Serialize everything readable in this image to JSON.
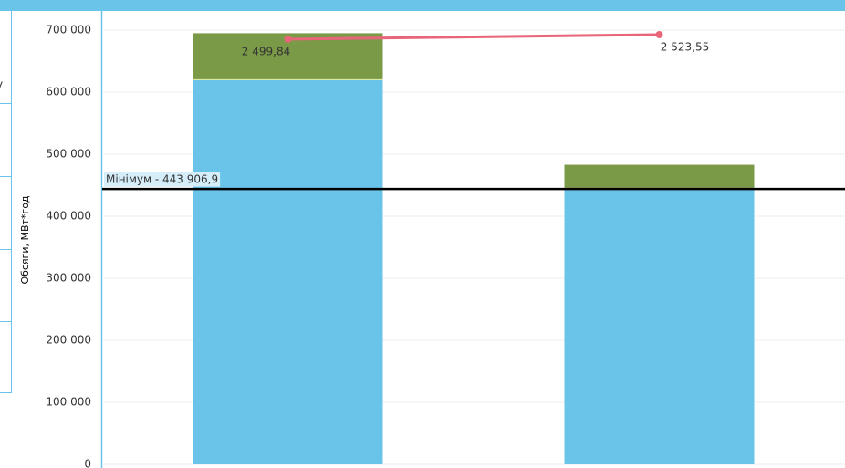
{
  "panel": {
    "text": "у"
  },
  "chart_data": {
    "type": "bar",
    "stacked": true,
    "ylabel": "Обсяги, МВт*год",
    "categories": [
      null,
      null
    ],
    "series": [
      {
        "color": "#6ac4ea",
        "values": [
          620000,
          445000
        ]
      },
      {
        "color": "#7a9a47",
        "values": [
          75000,
          38000
        ]
      },
      {
        "type": "line",
        "axis": "y2",
        "color": "#e8657a",
        "values": [
          2499.84,
          2523.55
        ],
        "value_labels": [
          "2 499,84",
          "2 523,55"
        ]
      }
    ],
    "ylim": [
      0,
      700000
    ],
    "yticks": [
      {
        "value": 0,
        "label": "0"
      },
      {
        "value": 100000,
        "label": "100 000"
      },
      {
        "value": 200000,
        "label": "200 000"
      },
      {
        "value": 300000,
        "label": "300 000"
      },
      {
        "value": 400000,
        "label": "400 000"
      },
      {
        "value": 500000,
        "label": "500 000"
      },
      {
        "value": 600000,
        "label": "600 000"
      },
      {
        "value": 700000,
        "label": "700 000"
      }
    ],
    "y2lim": [
      290,
      2547
    ],
    "grid": true,
    "reference_line": {
      "value": 443906.9,
      "label": "Мінімум - 443 906,9",
      "color": "#000000"
    }
  }
}
